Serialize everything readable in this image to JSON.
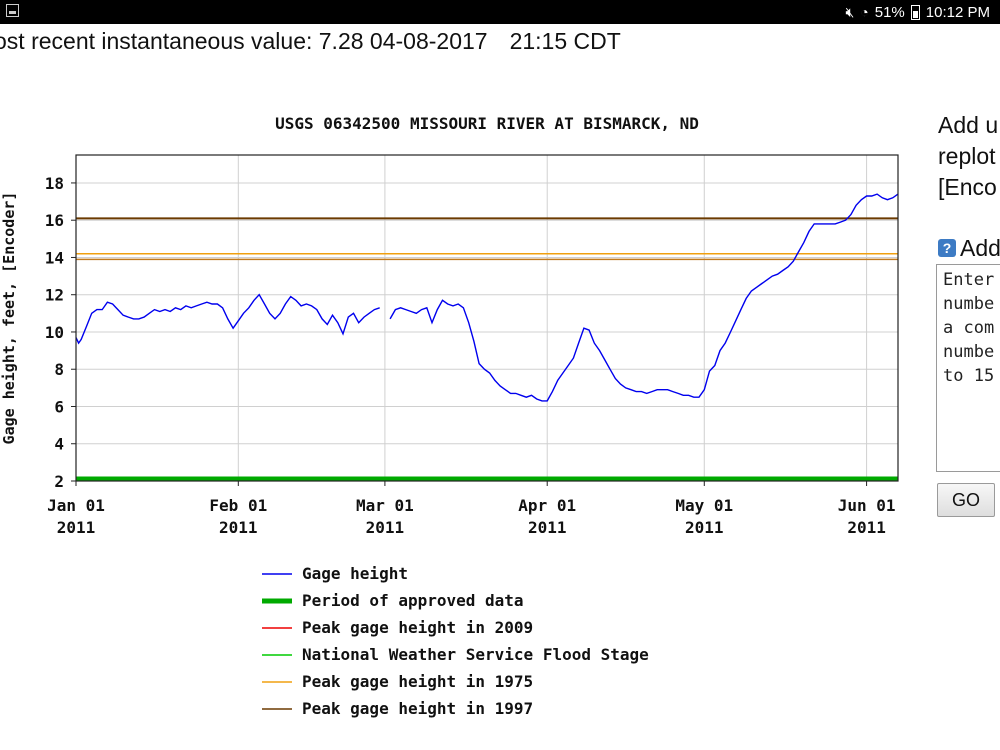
{
  "status_bar": {
    "battery": "51%",
    "time": "10:12 PM",
    "icons": [
      "app-notification-icon",
      "mute-icon",
      "wifi-icon",
      "battery-icon"
    ]
  },
  "header": {
    "prefix_text": "ost recent instantaneous value:",
    "value": "7.28",
    "date": "04-08-2017",
    "time": "21:15 CDT"
  },
  "side_panel": {
    "line1": "Add u",
    "line2": "replot",
    "line3": "[Enco",
    "help_label": "Add",
    "textarea_text": "Enter\nnumbe\na com\nnumbe\nto 15",
    "go_label": "GO"
  },
  "chart_data": {
    "type": "line",
    "title": "USGS 06342500 MISSOURI RIVER AT BISMARCK, ND",
    "ylabel": "Gage height, feet, [Encoder]",
    "xlabel": "",
    "ylim": [
      2,
      19.5
    ],
    "yticks": [
      2,
      4,
      6,
      8,
      10,
      12,
      14,
      16,
      18
    ],
    "xticks": [
      {
        "top": "Jan 01",
        "bottom": "2011",
        "day": 0
      },
      {
        "top": "Feb 01",
        "bottom": "2011",
        "day": 31
      },
      {
        "top": "Mar 01",
        "bottom": "2011",
        "day": 59
      },
      {
        "top": "Apr 01",
        "bottom": "2011",
        "day": 90
      },
      {
        "top": "May 01",
        "bottom": "2011",
        "day": 120
      },
      {
        "top": "Jun 01",
        "bottom": "2011",
        "day": 151
      }
    ],
    "xlim": [
      0,
      157
    ],
    "grid": true,
    "series": [
      {
        "name": "Gage height",
        "color": "#0000ee",
        "segments": [
          [
            [
              0,
              9.7
            ],
            [
              0.5,
              9.4
            ],
            [
              1,
              9.6
            ],
            [
              2,
              10.3
            ],
            [
              3,
              11
            ],
            [
              4,
              11.2
            ],
            [
              5,
              11.2
            ],
            [
              6,
              11.6
            ],
            [
              7,
              11.5
            ],
            [
              8,
              11.2
            ],
            [
              9,
              10.9
            ],
            [
              10,
              10.8
            ],
            [
              11,
              10.7
            ],
            [
              12,
              10.7
            ],
            [
              13,
              10.8
            ],
            [
              14,
              11
            ],
            [
              15,
              11.2
            ],
            [
              16,
              11.1
            ],
            [
              17,
              11.2
            ],
            [
              18,
              11.1
            ],
            [
              19,
              11.3
            ],
            [
              20,
              11.2
            ],
            [
              21,
              11.4
            ],
            [
              22,
              11.3
            ],
            [
              23,
              11.4
            ],
            [
              24,
              11.5
            ],
            [
              25,
              11.6
            ],
            [
              26,
              11.5
            ],
            [
              27,
              11.5
            ],
            [
              28,
              11.3
            ],
            [
              29,
              10.7
            ],
            [
              30,
              10.2
            ],
            [
              31,
              10.6
            ],
            [
              32,
              11.0
            ],
            [
              33,
              11.3
            ],
            [
              34,
              11.7
            ],
            [
              35,
              12.0
            ],
            [
              36,
              11.5
            ],
            [
              37,
              11.0
            ],
            [
              38,
              10.7
            ],
            [
              39,
              11.0
            ],
            [
              40,
              11.5
            ],
            [
              41,
              11.9
            ],
            [
              42,
              11.7
            ],
            [
              43,
              11.4
            ],
            [
              44,
              11.5
            ],
            [
              45,
              11.4
            ],
            [
              46,
              11.2
            ],
            [
              47,
              10.7
            ],
            [
              48,
              10.4
            ],
            [
              49,
              10.9
            ],
            [
              50,
              10.5
            ],
            [
              51,
              9.9
            ],
            [
              52,
              10.8
            ],
            [
              53,
              11.0
            ],
            [
              54,
              10.5
            ],
            [
              55,
              10.8
            ],
            [
              56,
              11.0
            ],
            [
              57,
              11.2
            ],
            [
              58,
              11.3
            ]
          ],
          [
            [
              60,
              10.7
            ],
            [
              61,
              11.2
            ],
            [
              62,
              11.3
            ],
            [
              63,
              11.2
            ],
            [
              64,
              11.1
            ],
            [
              65,
              11.0
            ],
            [
              66,
              11.2
            ],
            [
              67,
              11.3
            ],
            [
              68,
              10.5
            ],
            [
              69,
              11.2
            ],
            [
              70,
              11.7
            ],
            [
              71,
              11.5
            ],
            [
              72,
              11.4
            ],
            [
              73,
              11.5
            ],
            [
              74,
              11.3
            ],
            [
              75,
              10.5
            ],
            [
              76,
              9.5
            ],
            [
              77,
              8.3
            ],
            [
              78,
              8.0
            ],
            [
              79,
              7.8
            ],
            [
              80,
              7.4
            ],
            [
              81,
              7.1
            ],
            [
              82,
              6.9
            ],
            [
              83,
              6.7
            ],
            [
              84,
              6.7
            ],
            [
              85,
              6.6
            ],
            [
              86,
              6.5
            ],
            [
              87,
              6.6
            ],
            [
              88,
              6.4
            ],
            [
              89,
              6.3
            ],
            [
              90,
              6.3
            ],
            [
              91,
              6.8
            ],
            [
              92,
              7.4
            ],
            [
              93,
              7.8
            ],
            [
              94,
              8.2
            ],
            [
              95,
              8.6
            ],
            [
              96,
              9.4
            ],
            [
              97,
              10.2
            ],
            [
              98,
              10.1
            ],
            [
              99,
              9.4
            ],
            [
              100,
              9.0
            ],
            [
              101,
              8.5
            ],
            [
              102,
              8.0
            ],
            [
              103,
              7.5
            ],
            [
              104,
              7.2
            ],
            [
              105,
              7.0
            ],
            [
              106,
              6.9
            ],
            [
              107,
              6.8
            ],
            [
              108,
              6.8
            ],
            [
              109,
              6.7
            ],
            [
              110,
              6.8
            ],
            [
              111,
              6.9
            ],
            [
              112,
              6.9
            ],
            [
              113,
              6.9
            ],
            [
              114,
              6.8
            ],
            [
              115,
              6.7
            ],
            [
              116,
              6.6
            ],
            [
              117,
              6.6
            ],
            [
              118,
              6.5
            ],
            [
              119,
              6.5
            ],
            [
              120,
              6.9
            ],
            [
              121,
              7.9
            ],
            [
              122,
              8.2
            ],
            [
              123,
              9.0
            ],
            [
              124,
              9.4
            ],
            [
              125,
              10.0
            ],
            [
              126,
              10.6
            ],
            [
              127,
              11.2
            ],
            [
              128,
              11.8
            ],
            [
              129,
              12.2
            ],
            [
              130,
              12.4
            ],
            [
              131,
              12.6
            ],
            [
              132,
              12.8
            ],
            [
              133,
              13.0
            ],
            [
              134,
              13.1
            ],
            [
              135,
              13.3
            ],
            [
              136,
              13.5
            ],
            [
              137,
              13.8
            ],
            [
              138,
              14.3
            ],
            [
              139,
              14.8
            ],
            [
              140,
              15.4
            ],
            [
              141,
              15.8
            ],
            [
              142,
              15.8
            ],
            [
              143,
              15.8
            ],
            [
              144,
              15.8
            ],
            [
              145,
              15.8
            ],
            [
              146,
              15.9
            ],
            [
              147,
              16.0
            ],
            [
              148,
              16.3
            ],
            [
              149,
              16.8
            ],
            [
              150,
              17.1
            ],
            [
              151,
              17.3
            ],
            [
              152,
              17.3
            ],
            [
              153,
              17.4
            ],
            [
              154,
              17.2
            ],
            [
              155,
              17.1
            ],
            [
              156,
              17.2
            ],
            [
              157,
              17.4
            ]
          ]
        ]
      },
      {
        "name": "Period of approved data",
        "color": "#00aa00",
        "y": 2.0,
        "range": [
          0,
          157
        ]
      },
      {
        "name": "Peak gage height in 2009",
        "color": "#ee0000"
      },
      {
        "name": "National Weather Service Flood Stage",
        "color": "#00cc00"
      },
      {
        "name": "Peak gage height in 1975",
        "color": "#f0a010",
        "y": 14.2
      },
      {
        "name": "Peak gage height in 1997",
        "color": "#6b3a00",
        "y": 16.1
      }
    ],
    "flood_stage_y": 13.9
  }
}
